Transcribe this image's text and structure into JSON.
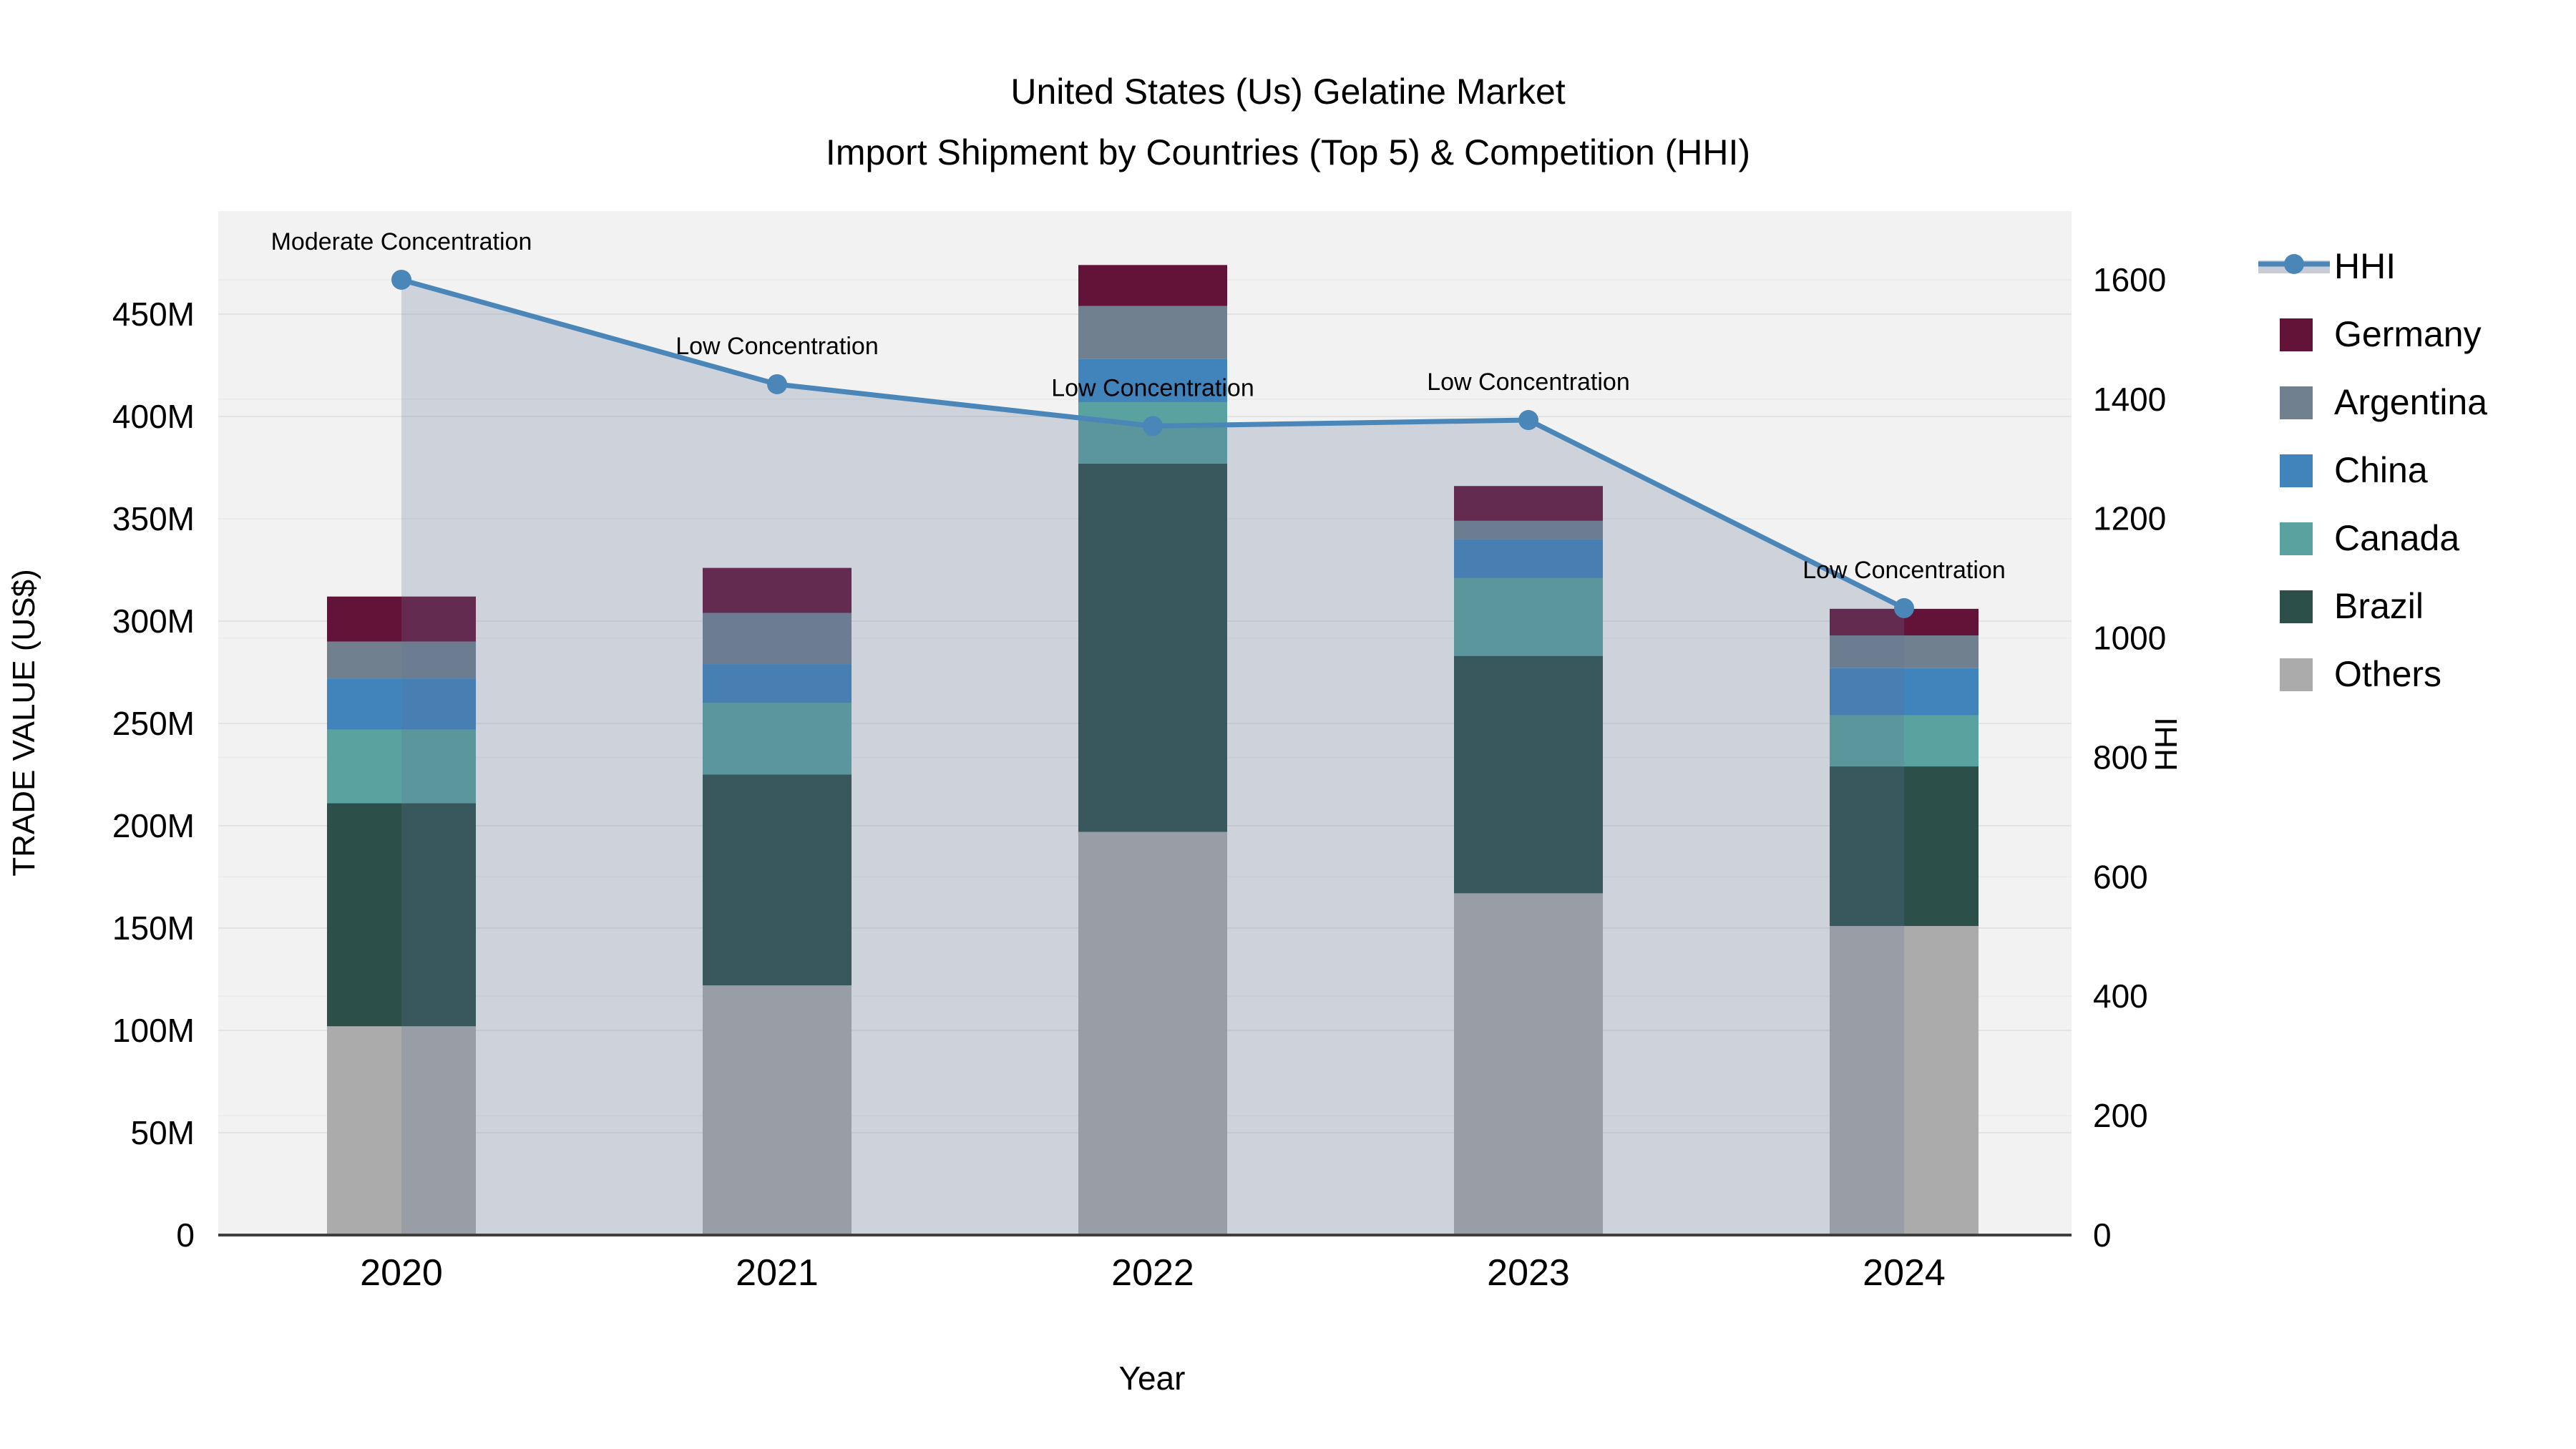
{
  "title": {
    "line1": "United States (Us) Gelatine Market",
    "line2": "Import Shipment by Countries (Top 5) & Competition (HHI)"
  },
  "axis_titles": {
    "left": "TRADE VALUE (US$)",
    "right": "HHI",
    "x": "Year"
  },
  "chart_data": {
    "type": "stacked-bar+line-dual-axis",
    "title": "United States (Us) Gelatine Market — Import Shipment by Countries (Top 5) & Competition (HHI)",
    "categories": [
      "2020",
      "2021",
      "2022",
      "2023",
      "2024"
    ],
    "unit": "Million US$ (left axis), HHI index (right axis)",
    "series": [
      {
        "name": "Others",
        "color": "#ABABAB",
        "values": [
          102,
          122,
          197,
          167,
          151
        ]
      },
      {
        "name": "Brazil",
        "color": "#2C4F4A",
        "values": [
          109,
          103,
          180,
          116,
          78
        ]
      },
      {
        "name": "Canada",
        "color": "#5AA29F",
        "values": [
          36,
          35,
          30,
          38,
          25
        ]
      },
      {
        "name": "China",
        "color": "#4183BB",
        "values": [
          25,
          19,
          21,
          19,
          23
        ]
      },
      {
        "name": "Argentina",
        "color": "#71808F",
        "values": [
          18,
          25,
          26,
          9,
          16
        ]
      },
      {
        "name": "Germany",
        "color": "#641338",
        "values": [
          22,
          22,
          20,
          17,
          13
        ]
      }
    ],
    "bar_totals": [
      312,
      326,
      474,
      366,
      306
    ],
    "line_series": {
      "name": "HHI",
      "color": "#4A86B8",
      "axis": "right",
      "values": [
        1600,
        1425,
        1355,
        1365,
        1050
      ]
    },
    "annotations": [
      "Moderate Concentration",
      "Low Concentration",
      "Low Concentration",
      "Low Concentration",
      "Low Concentration"
    ],
    "left_axis": {
      "label": "TRADE VALUE (US$)",
      "tick_labels": [
        "0",
        "50M",
        "100M",
        "150M",
        "200M",
        "250M",
        "300M",
        "350M",
        "400M",
        "450M"
      ],
      "tick_values": [
        0,
        50,
        100,
        150,
        200,
        250,
        300,
        350,
        400,
        450
      ],
      "range": [
        0,
        500
      ]
    },
    "right_axis": {
      "label": "HHI",
      "tick_labels": [
        "0",
        "200",
        "400",
        "600",
        "800",
        "1000",
        "1200",
        "1400",
        "1600"
      ],
      "tick_values": [
        0,
        200,
        400,
        600,
        800,
        1000,
        1200,
        1400,
        1600
      ]
    },
    "x_axis": {
      "label": "Year"
    },
    "grid": true,
    "legend_position": "right"
  },
  "legend": {
    "items": [
      {
        "label": "HHI",
        "type": "line",
        "color": "#4A86B8"
      },
      {
        "label": "Germany",
        "type": "swatch",
        "color": "#641338"
      },
      {
        "label": "Argentina",
        "type": "swatch",
        "color": "#71808F"
      },
      {
        "label": "China",
        "type": "swatch",
        "color": "#4183BB"
      },
      {
        "label": "Canada",
        "type": "swatch",
        "color": "#5AA29F"
      },
      {
        "label": "Brazil",
        "type": "swatch",
        "color": "#2C4F4A"
      },
      {
        "label": "Others",
        "type": "swatch",
        "color": "#ABABAB"
      }
    ]
  },
  "colors": {
    "hhi_line": "#4A86B8",
    "area_fill": "rgba(94,114,150,0.25)",
    "plot_bg": "#F2F2F2",
    "grid_left": "#E3E3E3",
    "grid_right": "#EBEBEB",
    "baseline": "#3F3F3F",
    "legend_band": "#C7CCD6",
    "text": "#000000"
  }
}
